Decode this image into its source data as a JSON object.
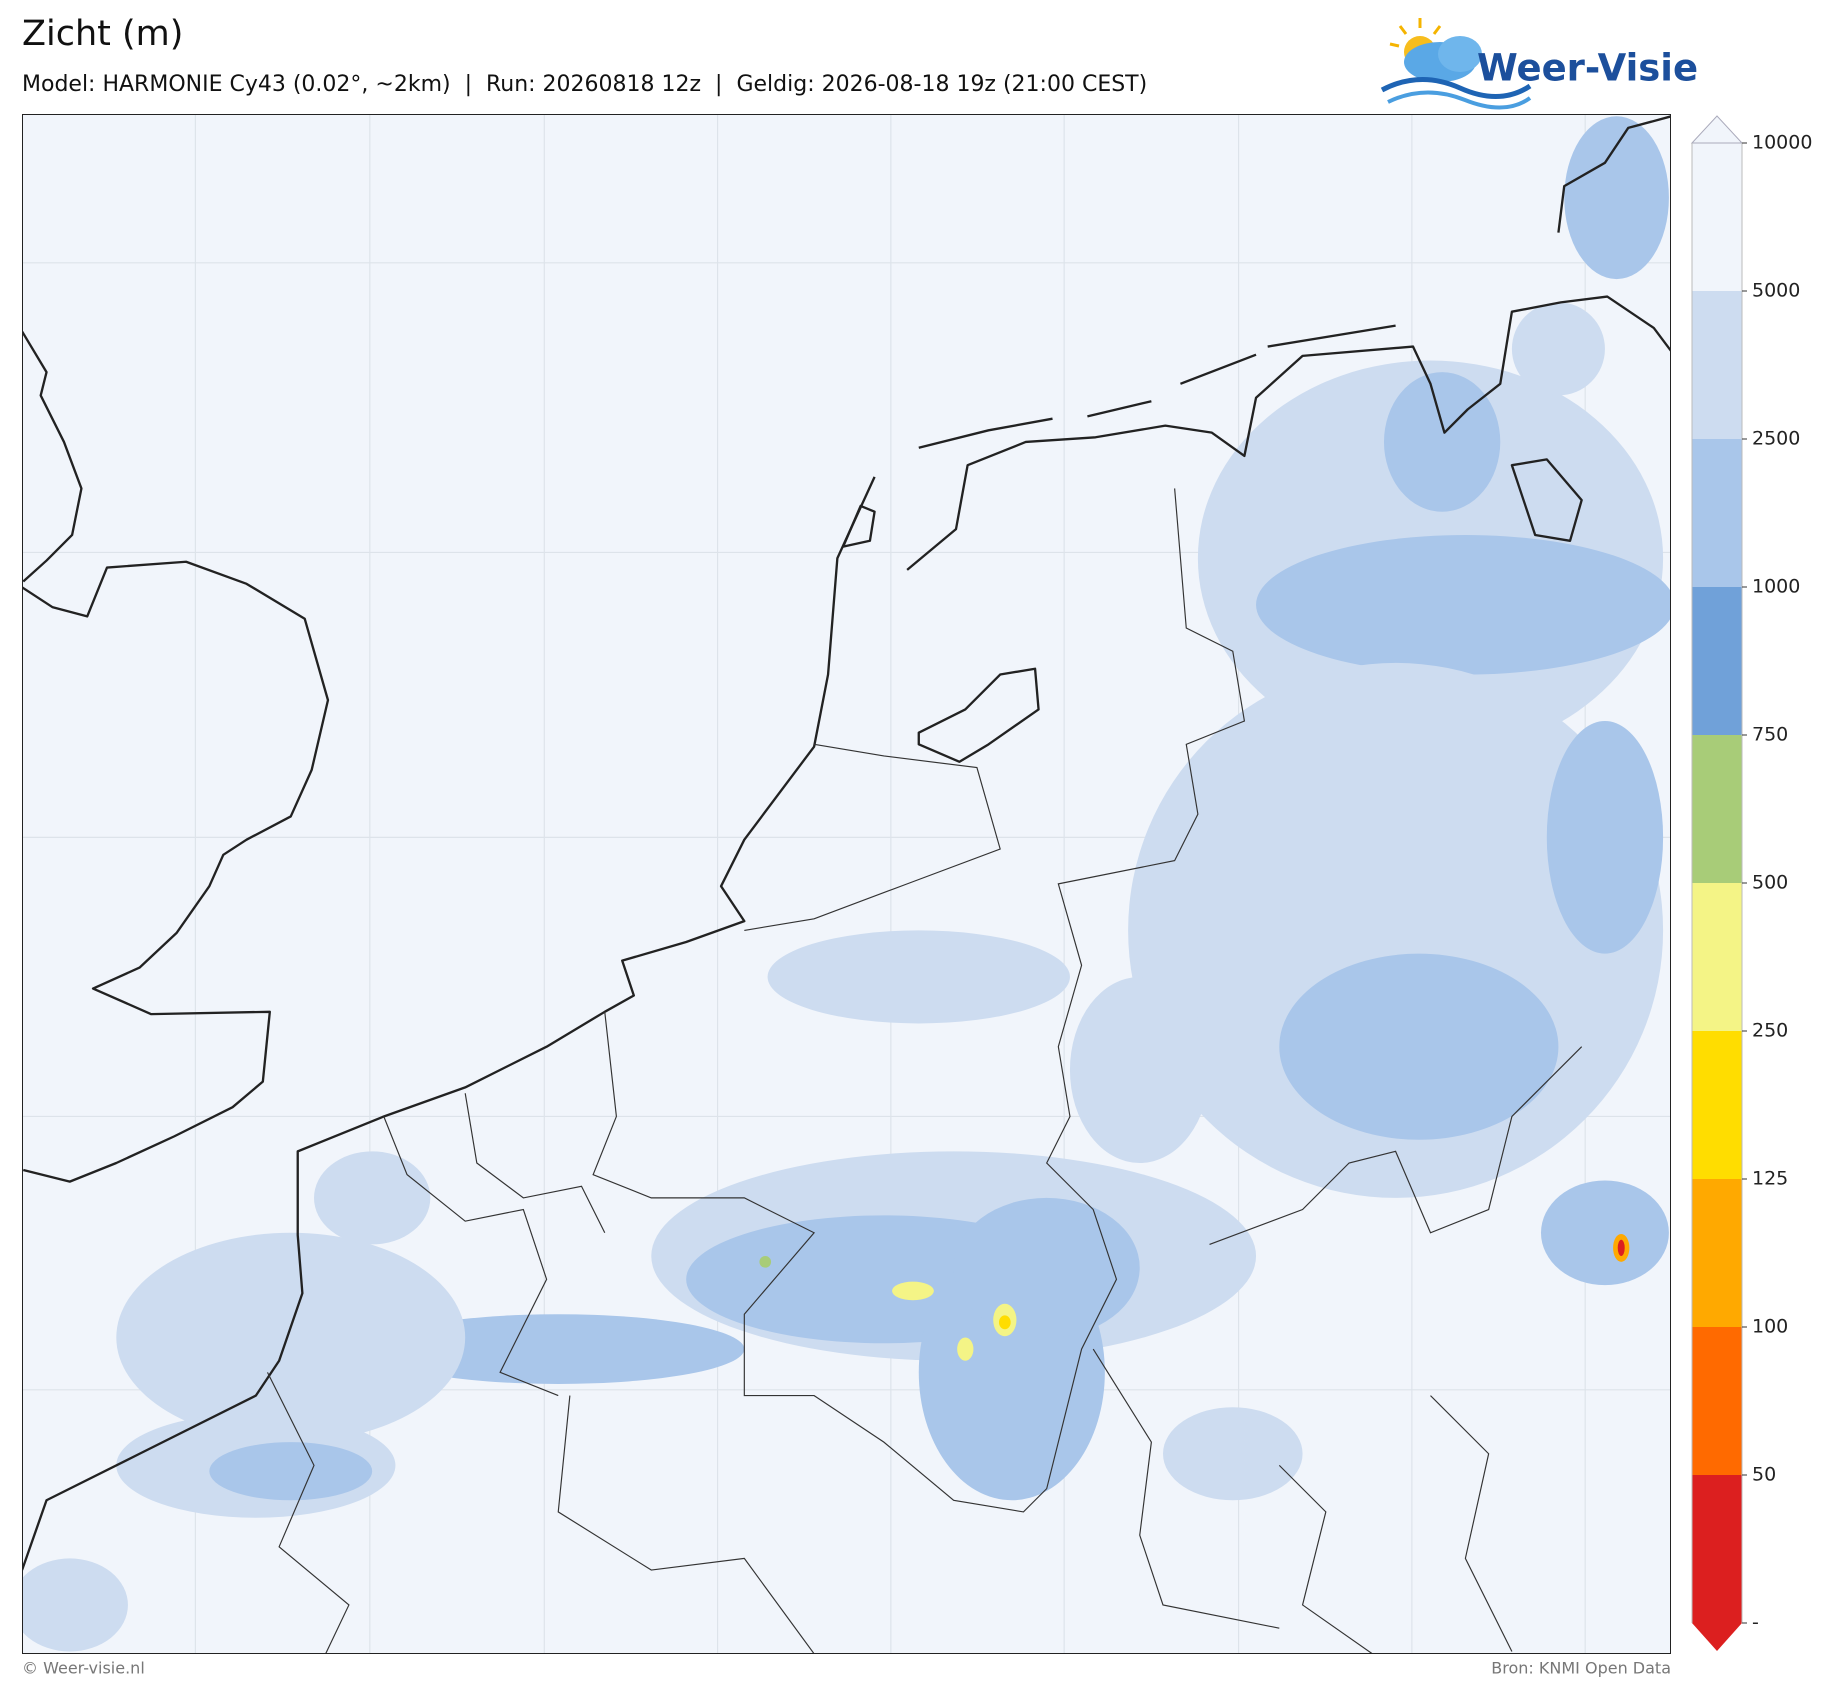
{
  "header": {
    "title": "Zicht (m)",
    "subtitle": "Model: HARMONIE Cy43 (0.02°, ~2km)  |  Run: 20260818 12z  |  Geldig: 2026-08-18 19z (21:00 CEST)"
  },
  "logo": {
    "text": "Weer-Visie"
  },
  "colorbar": {
    "ticks": [
      "10000",
      "5000",
      "2500",
      "1000",
      "750",
      "500",
      "250",
      "125",
      "100",
      "50",
      "-"
    ],
    "colors": [
      "#f1f5fb",
      "#cddcf0",
      "#a9c6ea",
      "#70a1d9",
      "#a8cc78",
      "#f4f486",
      "#ffdd00",
      "#ffa900",
      "#ff6a00",
      "#dc1f1f"
    ]
  },
  "footer": {
    "left": "© Weer-visie.nl",
    "right": "Bron: KNMI Open Data"
  }
}
